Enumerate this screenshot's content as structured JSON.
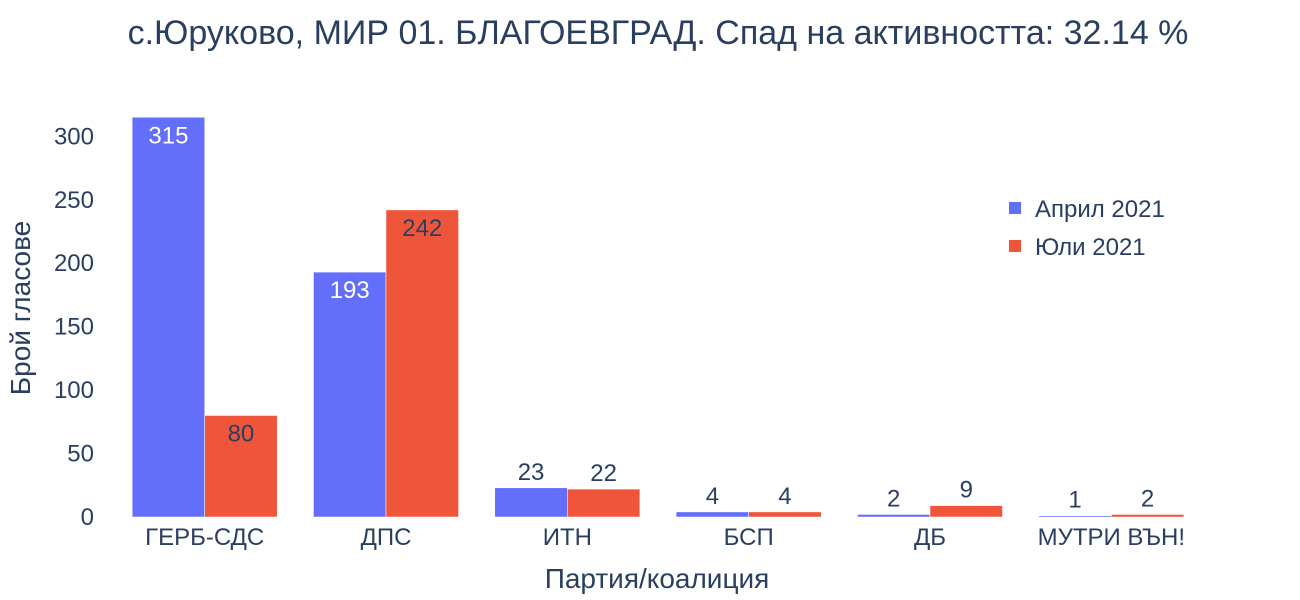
{
  "chart_data": {
    "type": "bar",
    "title": "с.Юруково, МИР 01. БЛАГОЕВГРАД. Спад на активността: 32.14 %",
    "xlabel": "Партия/коалиция",
    "ylabel": "Брой гласове",
    "categories": [
      "ГЕРБ-СДС",
      "ДПС",
      "ИТН",
      "БСП",
      "ДБ",
      "МУТРИ ВЪН!"
    ],
    "series": [
      {
        "name": "Април 2021",
        "color": "#636efa",
        "values": [
          315,
          193,
          23,
          4,
          2,
          1
        ]
      },
      {
        "name": "Юли 2021",
        "color": "#ef553b",
        "values": [
          80,
          242,
          22,
          4,
          9,
          2
        ]
      }
    ],
    "ylim": [
      0,
      316
    ],
    "yticks": [
      0,
      50,
      100,
      150,
      200,
      250,
      300
    ],
    "grid": false,
    "legend_position": "top-right"
  }
}
